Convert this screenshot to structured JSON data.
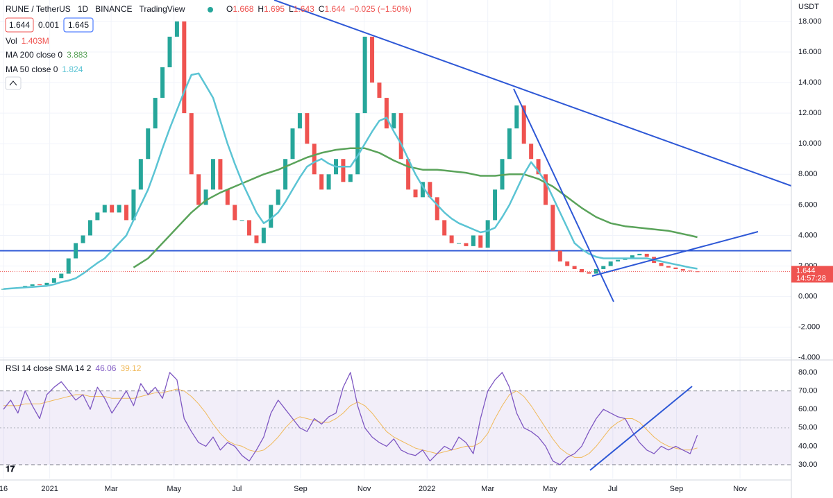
{
  "header": {
    "symbol": "RUNE / TetherUS",
    "interval": "1D",
    "exchange": "BINANCE",
    "brand": "TradingView",
    "ohlc": [
      [
        "O",
        "1.668"
      ],
      [
        "H",
        "1.695"
      ],
      [
        "L",
        "1.643"
      ],
      [
        "C",
        "1.644"
      ]
    ],
    "change": "−0.025 (−1.50%)",
    "boxes": [
      "1.644",
      "0.001",
      "1.645"
    ],
    "vol": [
      "Vol",
      "1.403M"
    ],
    "currency": "USDT"
  },
  "chart_data": [
    {
      "type": "candlestick",
      "up_color": "#26a69a",
      "down_color": "#ef5350",
      "close": [
        0.5,
        0.55,
        0.6,
        0.7,
        0.8,
        0.75,
        0.9,
        1.2,
        1.5,
        2.5,
        3.5,
        4,
        5,
        5.5,
        6,
        5.5,
        6,
        5,
        7,
        9,
        11,
        13,
        15,
        17,
        18,
        12,
        8,
        6,
        7,
        9,
        7,
        6,
        5,
        5,
        4,
        3.5,
        4.5,
        6,
        7,
        9,
        11,
        12,
        10,
        8,
        7,
        8,
        9,
        7.5,
        8,
        12,
        17,
        14,
        13,
        11,
        12,
        9,
        7,
        6.5,
        7.5,
        6.5,
        5,
        4,
        3.5,
        3.5,
        3.3,
        4,
        3.2,
        5,
        7,
        9,
        11,
        12.5,
        10,
        9,
        8,
        6,
        3,
        2.3,
        2,
        1.8,
        1.6,
        1.5,
        1.8,
        2,
        2.3,
        2.4,
        2.5,
        2.7,
        2.8,
        2.6,
        2.2,
        2.0,
        1.9,
        1.8,
        1.7,
        1.65,
        1.644
      ],
      "ma": [
        {
          "label": "MA 200 close 0",
          "last": "3.883",
          "color": "#5aa35a",
          "values": [
            null,
            null,
            null,
            null,
            null,
            null,
            null,
            null,
            null,
            null,
            null,
            null,
            null,
            null,
            null,
            null,
            null,
            null,
            1.9,
            2.2,
            2.5,
            3.0,
            3.5,
            4.0,
            4.5,
            5.0,
            5.5,
            5.9,
            6.3,
            6.55,
            6.8,
            7.0,
            7.2,
            7.4,
            7.6,
            7.8,
            8.0,
            8.15,
            8.3,
            8.5,
            8.7,
            8.9,
            9.1,
            9.25,
            9.4,
            9.5,
            9.6,
            9.65,
            9.7,
            9.7,
            9.7,
            9.55,
            9.4,
            9.15,
            8.9,
            8.7,
            8.5,
            8.4,
            8.3,
            8.3,
            8.3,
            8.25,
            8.2,
            8.15,
            8.1,
            8.0,
            7.9,
            7.9,
            7.9,
            7.95,
            8.0,
            8.0,
            8.0,
            7.85,
            7.7,
            7.45,
            7.2,
            6.85,
            6.5,
            6.15,
            5.8,
            5.5,
            5.2,
            5.0,
            4.8,
            4.7,
            4.6,
            4.55,
            4.5,
            4.45,
            4.4,
            4.35,
            4.3,
            4.2,
            4.1,
            4.0,
            3.883
          ]
        },
        {
          "label": "MA 50 close 0",
          "last": "1.824",
          "color": "#5bc4d4",
          "values": [
            0.5,
            0.53,
            0.57,
            0.6,
            0.63,
            0.67,
            0.7,
            0.8,
            0.95,
            1.05,
            1.2,
            1.5,
            1.85,
            2.2,
            2.5,
            3.0,
            3.5,
            4.0,
            5.0,
            6.0,
            7.0,
            8.3,
            9.7,
            11,
            12.2,
            13.4,
            14.5,
            14.6,
            13.8,
            13,
            11.5,
            10,
            8.7,
            7.5,
            6.5,
            5.5,
            4.8,
            5.1,
            5.5,
            6.2,
            7,
            7.8,
            8.5,
            8.8,
            9,
            8.7,
            8.5,
            8.5,
            8.5,
            9.2,
            10,
            10.8,
            11.5,
            11.7,
            10.8,
            10,
            9,
            8,
            7.2,
            6.5,
            6,
            5.5,
            5.1,
            4.8,
            4.6,
            4.4,
            4.2,
            4.3,
            4.5,
            5.2,
            6,
            7,
            8,
            8.8,
            8.2,
            7.5,
            6.5,
            5.5,
            4.5,
            3.5,
            3.1,
            2.8,
            2.6,
            2.5,
            2.5,
            2.5,
            2.5,
            2.5,
            2.5,
            2.5,
            2.4,
            2.3,
            2.2,
            2.1,
            2.0,
            1.9,
            1.824
          ]
        }
      ],
      "hline": 3,
      "hline_color": "#2e58d6",
      "last_price": 1.644,
      "last_label": "1.644",
      "countdown": "14:57:28",
      "xlim": [
        -0.48,
        109
      ],
      "xticks": [
        {
          "value": 0,
          "label": "16"
        },
        {
          "value": 6.4,
          "label": "2021"
        },
        {
          "value": 14.9,
          "label": "Mar"
        },
        {
          "value": 23.6,
          "label": "May"
        },
        {
          "value": 32.3,
          "label": "Jul"
        },
        {
          "value": 41.1,
          "label": "Sep"
        },
        {
          "value": 49.9,
          "label": "Nov"
        },
        {
          "value": 58.6,
          "label": "2022"
        },
        {
          "value": 67,
          "label": "Mar"
        },
        {
          "value": 75.6,
          "label": "May"
        },
        {
          "value": 84.3,
          "label": "Jul"
        },
        {
          "value": 93.1,
          "label": "Sep"
        },
        {
          "value": 101.9,
          "label": "Nov"
        }
      ],
      "ylim": [
        -4.1,
        19.4
      ],
      "yticks": [
        {
          "value": -4,
          "label": "-4.000"
        },
        {
          "value": -2,
          "label": "-2.000"
        },
        {
          "value": 0,
          "label": "0.000"
        },
        {
          "value": 2,
          "label": "2.000"
        },
        {
          "value": 4,
          "label": "4.000"
        },
        {
          "value": 6,
          "label": "6.000"
        },
        {
          "value": 8,
          "label": "8.000"
        },
        {
          "value": 10,
          "label": "10.000"
        },
        {
          "value": 12,
          "label": "12.000"
        },
        {
          "value": 14,
          "label": "14.000"
        },
        {
          "value": 16,
          "label": "16.000"
        },
        {
          "value": 18,
          "label": "18.000"
        }
      ],
      "grid": true
    },
    {
      "type": "line",
      "label": "RSI 14 close SMA 14 2",
      "ylim": [
        22.5,
        86.4
      ],
      "yticks": [
        {
          "value": 30,
          "label": "30.00"
        },
        {
          "value": 40,
          "label": "40.00"
        },
        {
          "value": 50,
          "label": "50.00"
        },
        {
          "value": 60,
          "label": "60.00"
        },
        {
          "value": 70,
          "label": "70.00"
        },
        {
          "value": 80,
          "label": "80.00"
        }
      ],
      "band": [
        30,
        70
      ],
      "band_color": "#7e57c2",
      "midline": 50,
      "series": [
        {
          "last": "46.06",
          "color": "#7e57c2",
          "values": [
            60,
            65,
            58,
            70,
            62,
            55,
            68,
            72,
            75,
            70,
            65,
            68,
            60,
            72,
            66,
            58,
            64,
            70,
            62,
            74,
            68,
            72,
            66,
            80,
            76,
            55,
            48,
            42,
            40,
            45,
            38,
            42,
            40,
            35,
            32,
            38,
            45,
            58,
            65,
            60,
            55,
            50,
            48,
            55,
            52,
            56,
            58,
            72,
            80,
            62,
            50,
            45,
            42,
            40,
            44,
            38,
            36,
            35,
            38,
            32,
            36,
            40,
            38,
            45,
            42,
            36,
            55,
            70,
            76,
            80,
            72,
            58,
            50,
            48,
            45,
            40,
            32,
            30,
            34,
            36,
            40,
            48,
            55,
            60,
            58,
            56,
            55,
            48,
            42,
            38,
            36,
            40,
            38,
            40,
            38,
            36,
            46.06
          ]
        },
        {
          "last": "39.12",
          "color": "#f0b95a",
          "values": [
            62,
            62,
            62,
            63,
            63,
            63,
            64,
            65,
            66,
            67,
            68,
            68,
            67,
            67,
            67,
            66,
            66,
            66,
            66,
            67,
            68,
            69,
            69,
            70,
            71,
            70,
            67,
            63,
            58,
            52,
            47,
            43,
            41,
            40,
            38,
            37,
            38,
            41,
            45,
            50,
            54,
            56,
            55,
            54,
            53,
            53,
            55,
            58,
            62,
            64,
            62,
            58,
            53,
            48,
            45,
            43,
            41,
            39,
            38,
            37,
            36,
            37,
            38,
            39,
            40,
            40,
            42,
            47,
            55,
            62,
            68,
            70,
            67,
            62,
            56,
            50,
            44,
            39,
            36,
            34,
            34,
            36,
            40,
            45,
            50,
            53,
            55,
            55,
            53,
            49,
            45,
            42,
            40,
            39,
            38,
            38,
            39.12
          ]
        }
      ]
    }
  ]
}
